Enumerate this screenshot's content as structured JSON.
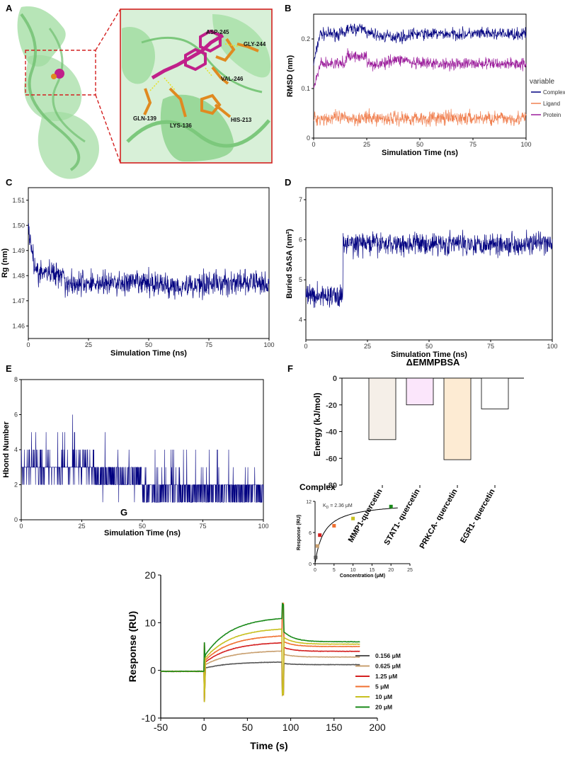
{
  "panels": [
    "A",
    "B",
    "C",
    "D",
    "E",
    "F",
    "G"
  ],
  "panel_a": {
    "residue_labels": [
      "ASP-245",
      "GLY-244",
      "VAL-246",
      "GLN-139",
      "LYS-136",
      "HIS-213"
    ]
  },
  "colors": {
    "complex": "#000080",
    "ligand": "#f08050",
    "protein": "#9b1c9b",
    "protein_cartoon": "#9fdc9f",
    "ligand_stick": "#c0208a",
    "residue_stick": "#e08a20"
  },
  "chart_data": [
    {
      "panel": "B",
      "type": "line",
      "xlabel": "Simulation Time (ns)",
      "ylabel": "RMSD (nm)",
      "xlim": [
        0,
        100
      ],
      "ylim": [
        0,
        0.25
      ],
      "xticks": [
        "0",
        "25",
        "50",
        "75",
        "100"
      ],
      "yticks": [
        "0",
        "0.1",
        "0.2"
      ],
      "legend_title": "variable",
      "legend_position": "right",
      "series": [
        {
          "name": "Complex",
          "mean": 0.21,
          "noise": 0.018
        },
        {
          "name": "Ligand",
          "mean": 0.04,
          "noise": 0.022
        },
        {
          "name": "Protein",
          "mean": 0.15,
          "noise": 0.018
        }
      ]
    },
    {
      "panel": "C",
      "type": "line",
      "xlabel": "Simulation Time (ns)",
      "ylabel": "Rg (nm)",
      "xlim": [
        0,
        100
      ],
      "ylim": [
        1.455,
        1.515
      ],
      "xticks": [
        "0",
        "25",
        "50",
        "75",
        "100"
      ],
      "yticks": [
        "1.46",
        "1.47",
        "1.48",
        "1.49",
        "1.50",
        "1.51"
      ],
      "series": [
        {
          "name": "",
          "start": 1.5,
          "mean": 1.477,
          "noise": 0.0075
        }
      ]
    },
    {
      "panel": "D",
      "type": "line",
      "xlabel": "Simulation Time (ns)",
      "ylabel": "Buried SASA (nm²)",
      "xlim": [
        0,
        100
      ],
      "ylim": [
        3.5,
        7.3
      ],
      "xticks": [
        "0",
        "25",
        "50",
        "75",
        "100"
      ],
      "yticks": [
        "4",
        "5",
        "6",
        "7"
      ],
      "series": [
        {
          "name": "",
          "segments": [
            [
              0,
              15,
              4.6
            ],
            [
              15,
              100,
              5.9
            ]
          ],
          "noise": 0.42
        }
      ]
    },
    {
      "panel": "E",
      "type": "line",
      "xlabel": "Simulation Time (ns)",
      "ylabel": "Hbond Number",
      "xlim": [
        0,
        100
      ],
      "ylim": [
        0,
        8
      ],
      "xticks": [
        "0",
        "25",
        "50",
        "75",
        "100"
      ],
      "yticks": [
        "0",
        "2",
        "4",
        "6",
        "8"
      ],
      "series": [
        {
          "name": "",
          "segments": [
            [
              0,
              30,
              3
            ],
            [
              30,
              50,
              2.4
            ],
            [
              50,
              100,
              1.6
            ]
          ]
        }
      ]
    },
    {
      "panel": "F",
      "type": "bar",
      "title": "ΔEMMPBSA",
      "xlabel": "Complex",
      "ylabel": "Energy (kJ/mol)",
      "ylim": [
        -80,
        0
      ],
      "yticks": [
        "0",
        "-20",
        "-40",
        "-60",
        "-80"
      ],
      "categories": [
        "MMP1-quercetin",
        "STAT1- quercetin",
        "PRKCA- quercetin",
        "EGR1- quercetin"
      ],
      "values": [
        -46,
        -20,
        -61,
        -23
      ],
      "bar_colors": [
        "#f5efe8",
        "#fbe6fb",
        "#fdebd3",
        "#ffffff"
      ]
    },
    {
      "panel": "G",
      "type": "line",
      "xlabel": "Time (s)",
      "ylabel": "Response (RU)",
      "xlim": [
        -50,
        200
      ],
      "ylim": [
        -10,
        20
      ],
      "xticks": [
        "-50",
        "0",
        "50",
        "100",
        "150",
        "200"
      ],
      "yticks": [
        "-10",
        "0",
        "10",
        "20"
      ],
      "legend_position": "bottom-right",
      "series": [
        {
          "name": "0.156 μM",
          "color": "#555555",
          "peak": 1.8,
          "plateau": 1.2
        },
        {
          "name": "0.625 μM",
          "color": "#c9a070",
          "peak": 4.2,
          "plateau": 2.8
        },
        {
          "name": "1.25 μM",
          "color": "#d42020",
          "peak": 6.0,
          "plateau": 4.0
        },
        {
          "name": "5 μM",
          "color": "#f07030",
          "peak": 7.5,
          "plateau": 5.0
        },
        {
          "name": "10 μM",
          "color": "#c8c020",
          "peak": 9.0,
          "plateau": 5.5
        },
        {
          "name": "20 μM",
          "color": "#1a8a1a",
          "peak": 11.3,
          "plateau": 6.0
        }
      ],
      "inset": {
        "type": "scatter",
        "annotation": "K",
        "annotation_sub": "D",
        "annotation_value": " = 2.36 μM",
        "xlabel": "Concentration (μM)",
        "ylabel": "Response (RU)",
        "xlim": [
          0,
          25
        ],
        "ylim": [
          0,
          12
        ],
        "xticks": [
          "0",
          "5",
          "10",
          "15",
          "20",
          "25"
        ],
        "yticks": [
          "0",
          "6",
          "12"
        ],
        "points": [
          {
            "x": 0.156,
            "y": 1.2,
            "color": "#555555"
          },
          {
            "x": 0.625,
            "y": 3.4,
            "color": "#c9a070"
          },
          {
            "x": 1.25,
            "y": 5.5,
            "color": "#d42020"
          },
          {
            "x": 5,
            "y": 7.3,
            "color": "#f07030"
          },
          {
            "x": 10,
            "y": 8.7,
            "color": "#c8c020"
          },
          {
            "x": 20,
            "y": 11.0,
            "color": "#1a8a1a"
          }
        ],
        "fit": {
          "rmax": 11.9,
          "kd": 2.36
        }
      }
    }
  ]
}
